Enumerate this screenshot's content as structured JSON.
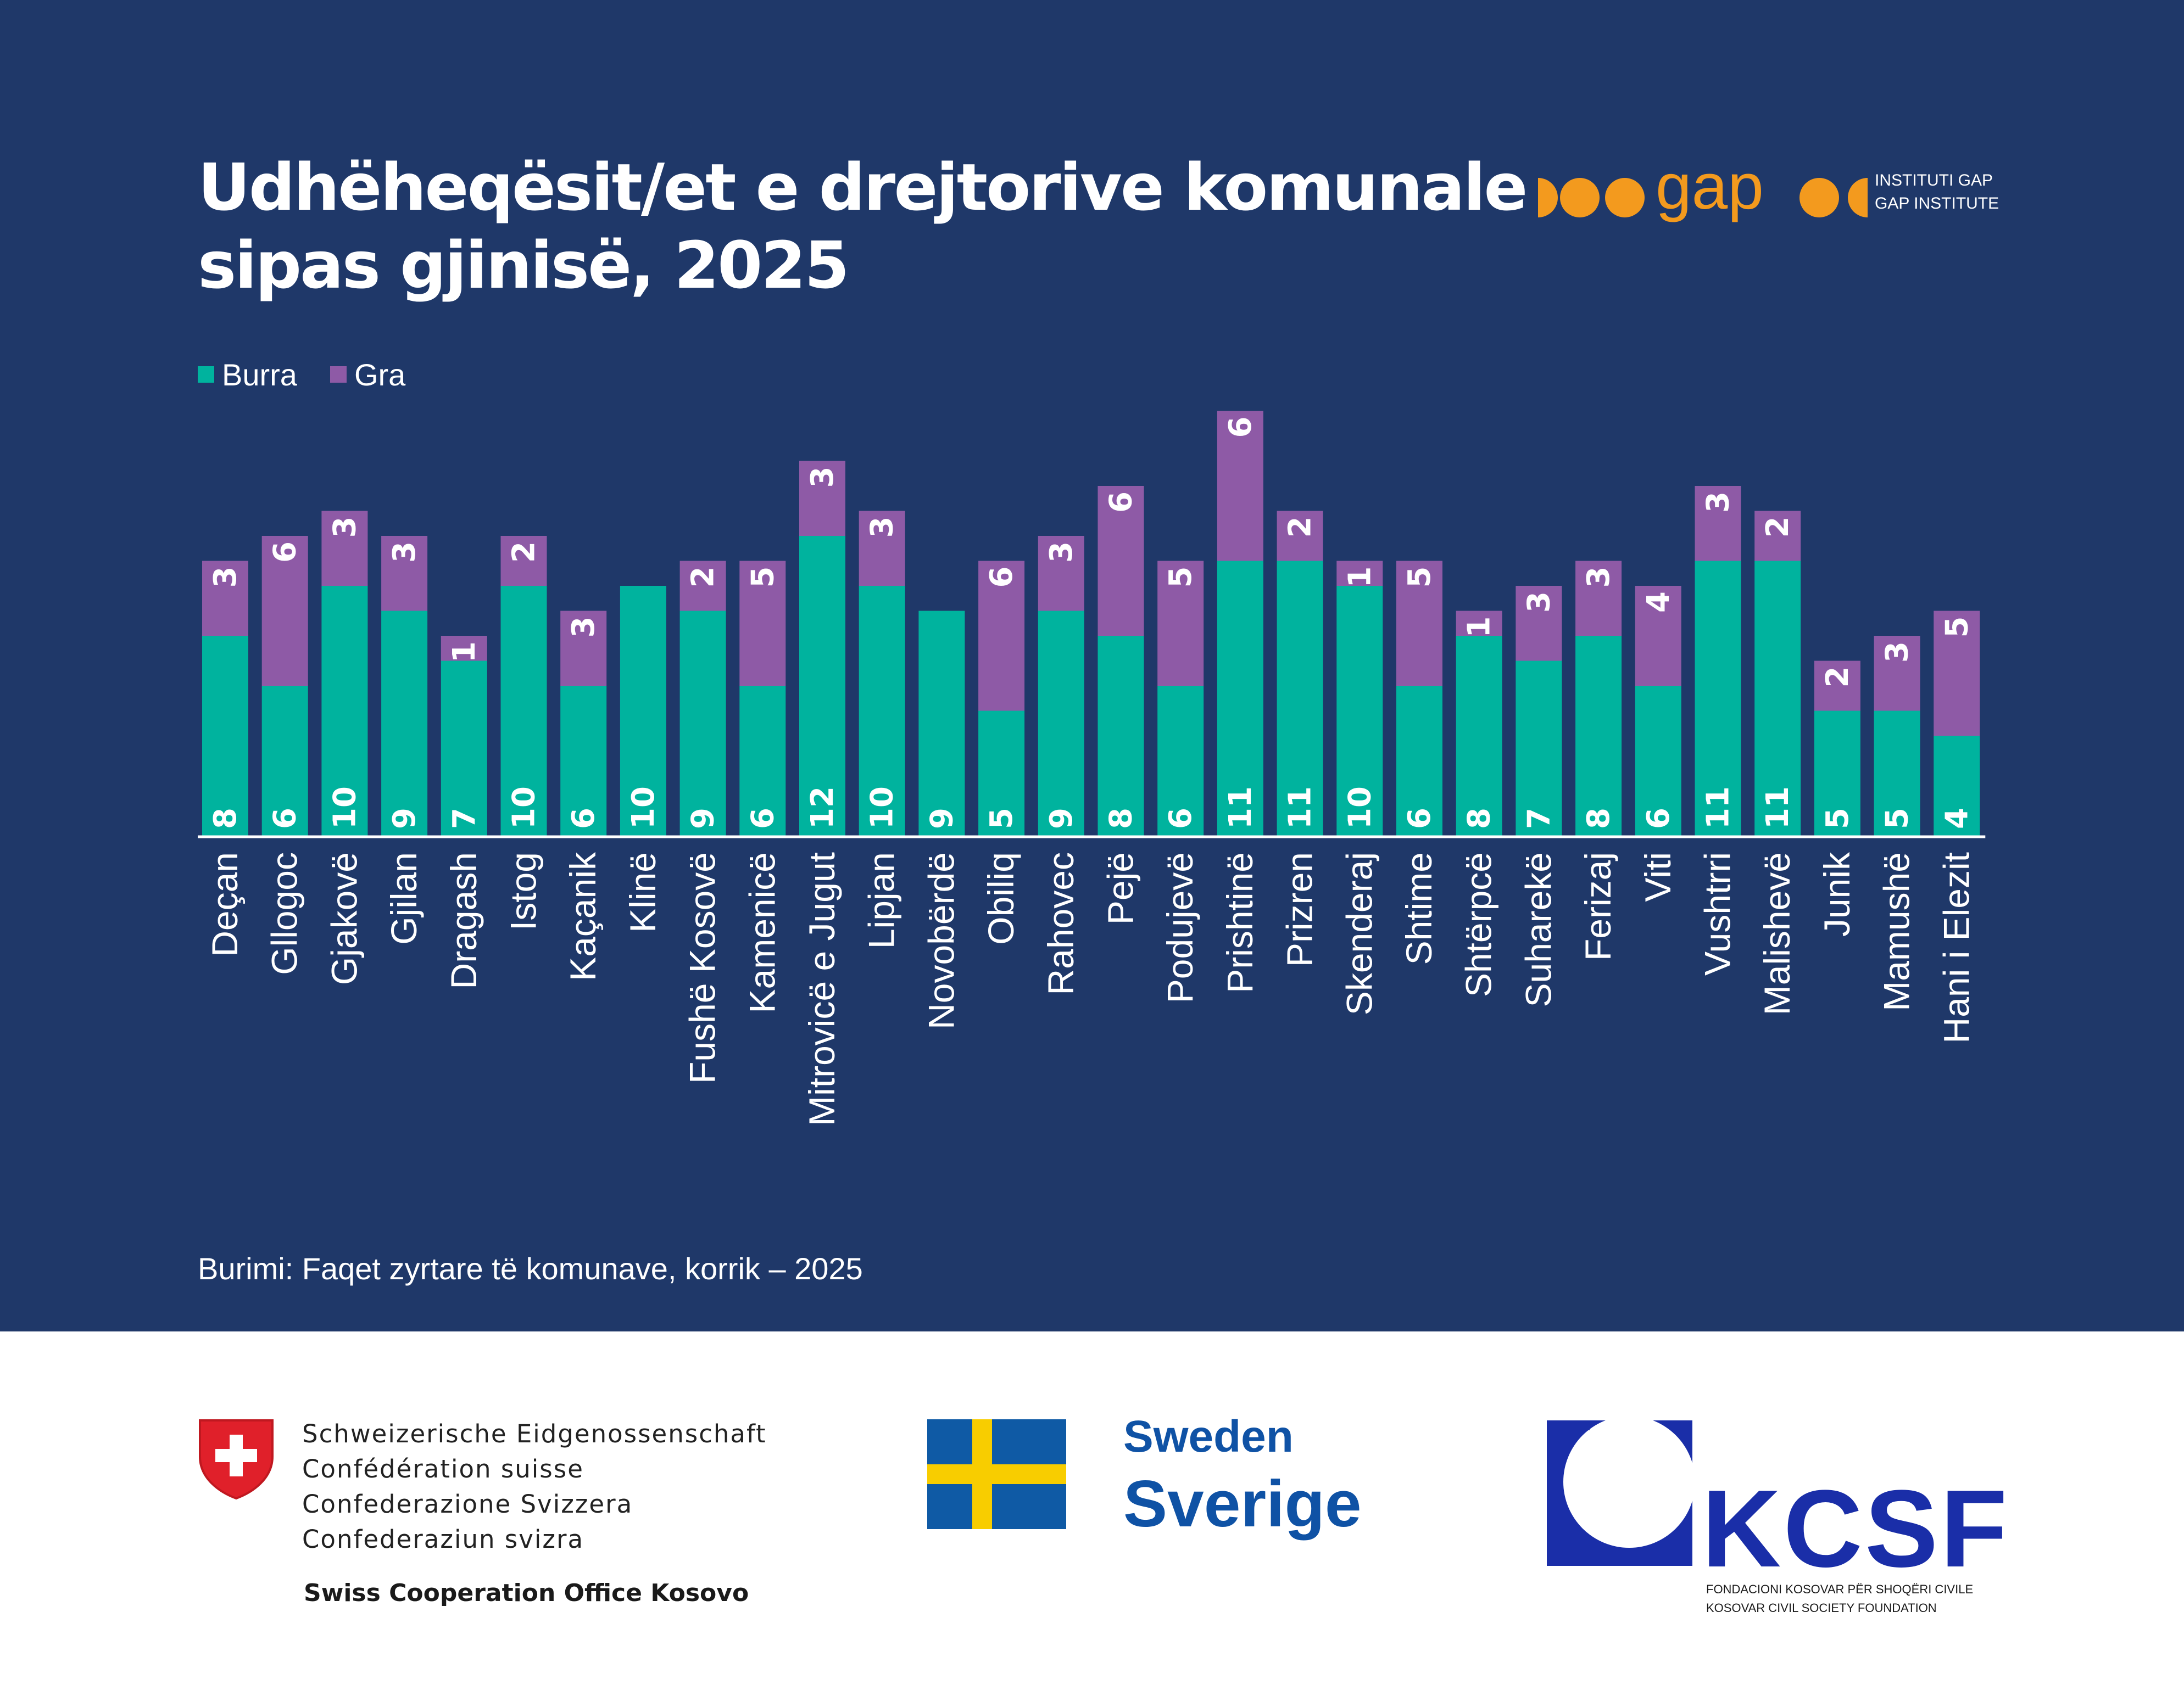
{
  "title_lines": [
    "Udhëheqësit/et e drejtorive komunale",
    "sipas gjinisë, 2025"
  ],
  "logo": {
    "institute_lines": [
      "INSTITUTI GAP",
      "GAP INSTITUTE"
    ],
    "wordmark": "gap",
    "color": "#f39a1e"
  },
  "source": "Burimi: Faqet zyrtare të komunave, korrik – 2025",
  "colors": {
    "background": "#1f3869",
    "men": "#00b39e",
    "women": "#8e5aa6",
    "baseline": "#ffffff"
  },
  "chart_data": {
    "type": "bar",
    "stacked": true,
    "orientation": "vertical",
    "categories": [
      "Deçan",
      "Gllogoc",
      "Gjakovë",
      "Gjilan",
      "Dragash",
      "Istog",
      "Kaçanik",
      "Klinë",
      "Fushë Kosovë",
      "Kamenicë",
      "Mitrovicë e Jugut",
      "Lipjan",
      "Novobërdë",
      "Obiliq",
      "Rahovec",
      "Pejë",
      "Podujevë",
      "Prishtinë",
      "Prizren",
      "Skenderaj",
      "Shtime",
      "Shtërpcë",
      "Suharekë",
      "Ferizaj",
      "Viti",
      "Vushtrri",
      "Malishevë",
      "Junik",
      "Mamushë",
      "Hani i Elezit"
    ],
    "series": [
      {
        "name": "Burra",
        "color": "#00b39e",
        "values": [
          8,
          6,
          10,
          9,
          7,
          10,
          6,
          10,
          9,
          6,
          12,
          10,
          9,
          5,
          9,
          8,
          6,
          11,
          11,
          10,
          6,
          8,
          7,
          8,
          6,
          11,
          11,
          5,
          5,
          4
        ]
      },
      {
        "name": "Gra",
        "color": "#8e5aa6",
        "values": [
          3,
          6,
          3,
          3,
          1,
          2,
          3,
          0,
          2,
          5,
          3,
          3,
          0,
          6,
          3,
          6,
          5,
          6,
          2,
          1,
          5,
          1,
          3,
          3,
          4,
          3,
          2,
          2,
          3,
          5
        ]
      }
    ],
    "data_labels": true,
    "data_label_orientation": "rotated 90°",
    "category_label_orientation": "rotated 90°",
    "legend": {
      "position": "top-left",
      "entries": [
        "Burra",
        "Gra"
      ]
    },
    "grid": false,
    "y_axis_visible": false,
    "ylim": [
      0,
      17
    ]
  },
  "footer": {
    "swiss": {
      "lines": [
        "Schweizerische Eidgenossenschaft",
        "Confédération suisse",
        "Confederazione Svizzera",
        "Confederaziun svizra"
      ],
      "office": "Swiss Cooperation Office Kosovo",
      "flag_color": "#e0202a"
    },
    "sweden": {
      "line1": "Sweden",
      "line2": "Sverige",
      "color": "#0f52a5",
      "flag_blue": "#0f5aa5",
      "flag_yellow": "#f8cd00"
    },
    "kcsf": {
      "name": "KCSF",
      "sub_lines": [
        "FONDACIONI KOSOVAR PËR SHOQËRI CIVILE",
        "KOSOVAR CIVIL SOCIETY FOUNDATION"
      ],
      "color": "#1a2ea8"
    }
  }
}
